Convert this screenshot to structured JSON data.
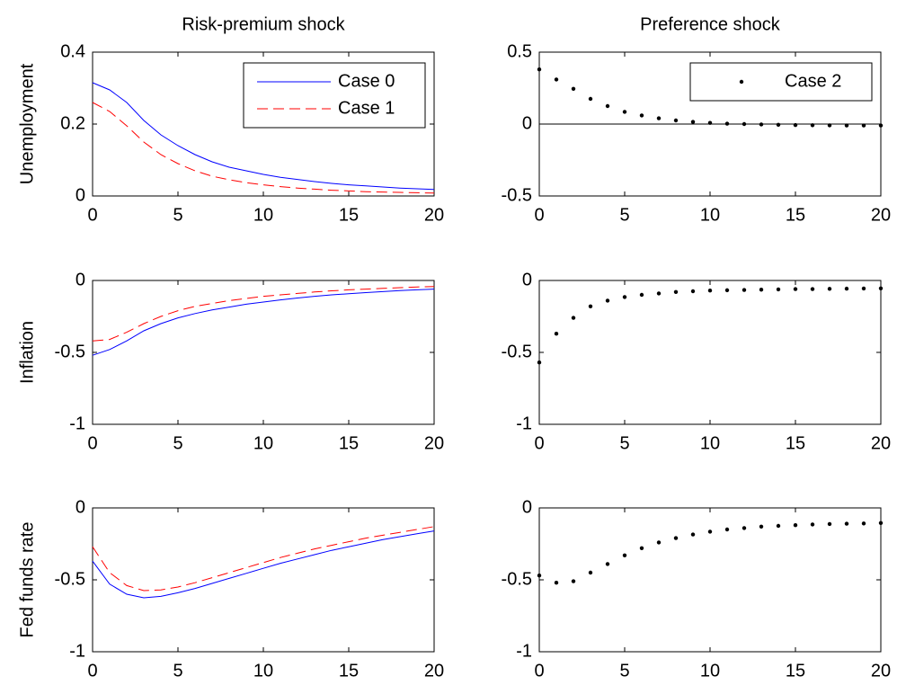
{
  "chart_data": [
    {
      "type": "line",
      "title": "Risk-premium shock",
      "y_label": "Unemployment",
      "x": [
        0,
        1,
        2,
        3,
        4,
        5,
        6,
        7,
        8,
        9,
        10,
        11,
        12,
        13,
        14,
        15,
        16,
        17,
        18,
        19,
        20
      ],
      "xlim": [
        0,
        20
      ],
      "xticks": [
        0,
        5,
        10,
        15,
        20
      ],
      "ylim": [
        0,
        0.4
      ],
      "yticks": [
        0,
        0.2,
        0.4
      ],
      "legend": "upper right",
      "series": [
        {
          "name": "Case 0",
          "color": "#0000ff",
          "style": "solid",
          "values": [
            0.315,
            0.295,
            0.26,
            0.21,
            0.17,
            0.14,
            0.115,
            0.095,
            0.08,
            0.07,
            0.06,
            0.052,
            0.046,
            0.04,
            0.035,
            0.031,
            0.028,
            0.025,
            0.022,
            0.02,
            0.018
          ]
        },
        {
          "name": "Case 1",
          "color": "#ff0000",
          "style": "dashed",
          "values": [
            0.26,
            0.235,
            0.195,
            0.15,
            0.115,
            0.09,
            0.07,
            0.055,
            0.045,
            0.037,
            0.031,
            0.026,
            0.022,
            0.019,
            0.016,
            0.014,
            0.012,
            0.011,
            0.01,
            0.009,
            0.008
          ]
        }
      ]
    },
    {
      "type": "scatter",
      "title": "Preference shock",
      "x": [
        0,
        1,
        2,
        3,
        4,
        5,
        6,
        7,
        8,
        9,
        10,
        11,
        12,
        13,
        14,
        15,
        16,
        17,
        18,
        19,
        20
      ],
      "xlim": [
        0,
        20
      ],
      "xticks": [
        0,
        5,
        10,
        15,
        20
      ],
      "ylim": [
        -0.5,
        0.5
      ],
      "yticks": [
        -0.5,
        0,
        0.5
      ],
      "legend": "upper right",
      "zero_line": true,
      "series": [
        {
          "name": "Case 2",
          "color": "#000000",
          "style": "dots",
          "values": [
            0.38,
            0.31,
            0.245,
            0.175,
            0.125,
            0.085,
            0.06,
            0.04,
            0.025,
            0.015,
            0.008,
            0.003,
            0,
            -0.003,
            -0.005,
            -0.007,
            -0.008,
            -0.009,
            -0.01,
            -0.01,
            -0.01
          ]
        }
      ]
    },
    {
      "type": "line",
      "y_label": "Inflation",
      "x": [
        0,
        1,
        2,
        3,
        4,
        5,
        6,
        7,
        8,
        9,
        10,
        11,
        12,
        13,
        14,
        15,
        16,
        17,
        18,
        19,
        20
      ],
      "xlim": [
        0,
        20
      ],
      "xticks": [
        0,
        5,
        10,
        15,
        20
      ],
      "ylim": [
        -1,
        0
      ],
      "yticks": [
        -1,
        -0.5,
        0
      ],
      "series": [
        {
          "color": "#0000ff",
          "style": "solid",
          "values": [
            -0.52,
            -0.48,
            -0.42,
            -0.35,
            -0.3,
            -0.26,
            -0.23,
            -0.205,
            -0.185,
            -0.165,
            -0.15,
            -0.135,
            -0.122,
            -0.11,
            -0.1,
            -0.092,
            -0.084,
            -0.077,
            -0.07,
            -0.065,
            -0.06
          ]
        },
        {
          "color": "#ff0000",
          "style": "dashed",
          "values": [
            -0.42,
            -0.41,
            -0.36,
            -0.3,
            -0.25,
            -0.21,
            -0.18,
            -0.16,
            -0.14,
            -0.125,
            -0.11,
            -0.1,
            -0.09,
            -0.08,
            -0.072,
            -0.065,
            -0.06,
            -0.055,
            -0.05,
            -0.045,
            -0.042
          ]
        }
      ]
    },
    {
      "type": "scatter",
      "x": [
        0,
        1,
        2,
        3,
        4,
        5,
        6,
        7,
        8,
        9,
        10,
        11,
        12,
        13,
        14,
        15,
        16,
        17,
        18,
        19,
        20
      ],
      "xlim": [
        0,
        20
      ],
      "xticks": [
        0,
        5,
        10,
        15,
        20
      ],
      "ylim": [
        -1,
        0
      ],
      "yticks": [
        -1,
        -0.5,
        0
      ],
      "series": [
        {
          "color": "#000000",
          "style": "dots",
          "values": [
            -0.57,
            -0.37,
            -0.26,
            -0.18,
            -0.14,
            -0.115,
            -0.1,
            -0.09,
            -0.08,
            -0.075,
            -0.07,
            -0.068,
            -0.066,
            -0.064,
            -0.062,
            -0.06,
            -0.06,
            -0.058,
            -0.057,
            -0.056,
            -0.055
          ]
        }
      ]
    },
    {
      "type": "line",
      "y_label": "Fed funds rate",
      "x": [
        0,
        1,
        2,
        3,
        4,
        5,
        6,
        7,
        8,
        9,
        10,
        11,
        12,
        13,
        14,
        15,
        16,
        17,
        18,
        19,
        20
      ],
      "xlim": [
        0,
        20
      ],
      "xticks": [
        0,
        5,
        10,
        15,
        20
      ],
      "ylim": [
        -1,
        0
      ],
      "yticks": [
        -1,
        -0.5,
        0
      ],
      "series": [
        {
          "color": "#0000ff",
          "style": "solid",
          "values": [
            -0.37,
            -0.53,
            -0.6,
            -0.625,
            -0.615,
            -0.59,
            -0.56,
            -0.525,
            -0.49,
            -0.455,
            -0.42,
            -0.385,
            -0.355,
            -0.325,
            -0.295,
            -0.27,
            -0.245,
            -0.22,
            -0.2,
            -0.18,
            -0.16
          ]
        },
        {
          "color": "#ff0000",
          "style": "dashed",
          "values": [
            -0.27,
            -0.45,
            -0.54,
            -0.575,
            -0.57,
            -0.55,
            -0.52,
            -0.485,
            -0.45,
            -0.415,
            -0.38,
            -0.345,
            -0.315,
            -0.285,
            -0.26,
            -0.235,
            -0.21,
            -0.19,
            -0.17,
            -0.15,
            -0.13
          ]
        }
      ]
    },
    {
      "type": "scatter",
      "x": [
        0,
        1,
        2,
        3,
        4,
        5,
        6,
        7,
        8,
        9,
        10,
        11,
        12,
        13,
        14,
        15,
        16,
        17,
        18,
        19,
        20
      ],
      "xlim": [
        0,
        20
      ],
      "xticks": [
        0,
        5,
        10,
        15,
        20
      ],
      "ylim": [
        -1,
        0
      ],
      "yticks": [
        -1,
        -0.5,
        0
      ],
      "series": [
        {
          "color": "#000000",
          "style": "dots",
          "values": [
            -0.47,
            -0.52,
            -0.51,
            -0.45,
            -0.39,
            -0.33,
            -0.28,
            -0.24,
            -0.21,
            -0.185,
            -0.165,
            -0.15,
            -0.14,
            -0.13,
            -0.125,
            -0.12,
            -0.115,
            -0.112,
            -0.11,
            -0.108,
            -0.105
          ]
        }
      ]
    }
  ]
}
